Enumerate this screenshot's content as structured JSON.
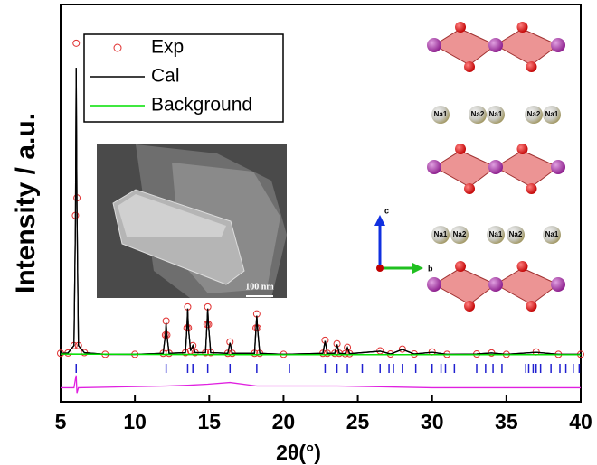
{
  "chart_data": {
    "type": "rietveld",
    "xlabel": "2θ(°)",
    "ylabel": "Intensity / a.u.",
    "xlim": [
      5,
      40
    ],
    "xticks": [
      5,
      10,
      15,
      20,
      25,
      30,
      35,
      40
    ],
    "ylim": [
      -13,
      100
    ],
    "legend": "upper left",
    "series": [
      {
        "name": "Exp",
        "style": "circles",
        "color": "#e03030",
        "x": [
          5,
          5.5,
          5.9,
          6.0,
          6.05,
          6.1,
          6.2,
          6.6,
          8,
          10,
          11.9,
          12.05,
          12.1,
          12.15,
          12.3,
          13.4,
          13.5,
          13.55,
          13.6,
          13.75,
          13.9,
          14.05,
          14.75,
          14.85,
          14.9,
          14.95,
          15.1,
          16.25,
          16.4,
          16.55,
          18.05,
          18.15,
          18.2,
          18.25,
          18.4,
          20,
          22.65,
          22.8,
          22.95,
          23.45,
          23.6,
          23.75,
          24.15,
          24.3,
          24.45,
          26.5,
          27.2,
          28,
          28.8,
          30,
          31,
          33,
          34,
          35,
          37,
          38.5,
          40
        ],
        "values": [
          0.8,
          0.9,
          3,
          40,
          89,
          45,
          3,
          1,
          0.5,
          0.5,
          0.8,
          6,
          10,
          6,
          0.8,
          1,
          8,
          14,
          8,
          1.5,
          3,
          1,
          1,
          9,
          14,
          9,
          1,
          0.8,
          4,
          0.8,
          0.8,
          8,
          12,
          8,
          0.8,
          0.5,
          0.8,
          4.5,
          0.8,
          0.8,
          3.5,
          0.8,
          0.7,
          2.5,
          0.7,
          1.5,
          0.6,
          2,
          0.6,
          1.2,
          0.5,
          0.6,
          0.9,
          0.5,
          1.2,
          0.5,
          0.5
        ]
      },
      {
        "name": "Cal",
        "style": "line",
        "color": "#000000",
        "x": [
          5,
          5.5,
          5.9,
          6.0,
          6.05,
          6.1,
          6.2,
          6.6,
          8,
          10,
          11.9,
          12.05,
          12.1,
          12.15,
          12.3,
          13.4,
          13.5,
          13.55,
          13.6,
          13.75,
          13.9,
          14.05,
          14.75,
          14.85,
          14.9,
          14.95,
          15.1,
          16.25,
          16.4,
          16.55,
          18.05,
          18.15,
          18.2,
          18.25,
          18.4,
          20,
          22.65,
          22.8,
          22.95,
          23.45,
          23.6,
          23.75,
          24.15,
          24.3,
          24.45,
          26.5,
          27.2,
          28,
          28.8,
          30,
          31,
          33,
          34,
          35,
          37,
          38.5,
          40
        ],
        "values": [
          0.8,
          0.9,
          3,
          38,
          82,
          43,
          3,
          1,
          0.5,
          0.5,
          0.8,
          6,
          9.5,
          6,
          0.8,
          1,
          8,
          13.5,
          8,
          1.5,
          3,
          1,
          1,
          9,
          13.5,
          9,
          1,
          0.8,
          3.8,
          0.8,
          0.8,
          8,
          11.5,
          8,
          0.8,
          0.5,
          0.8,
          4.3,
          0.8,
          0.8,
          3.3,
          0.8,
          0.7,
          2.4,
          0.7,
          1.4,
          0.6,
          1.9,
          0.6,
          1.1,
          0.5,
          0.6,
          0.9,
          0.5,
          1.1,
          0.5,
          0.5
        ]
      },
      {
        "name": "Background",
        "style": "line",
        "color": "#00e000",
        "x": [
          5,
          10,
          20,
          30,
          40
        ],
        "values": [
          0.6,
          0.5,
          0.4,
          0.4,
          0.4
        ]
      },
      {
        "style": "line",
        "color": "#e020e0",
        "x": [
          5,
          5.9,
          6.0,
          6.05,
          6.1,
          6.2,
          12.1,
          13.55,
          14.9,
          16.4,
          18.2,
          23.6,
          30,
          40
        ],
        "values": [
          -9,
          -9,
          -6.5,
          -5.5,
          -10.5,
          -9,
          -8.5,
          -8.3,
          -8,
          -7.5,
          -8.5,
          -8.5,
          -9,
          -9
        ]
      },
      {
        "style": "bragg",
        "color": "#2020d0",
        "level": -3.5,
        "x": [
          6.05,
          12.1,
          13.55,
          13.9,
          14.9,
          16.4,
          18.2,
          20.4,
          22.8,
          23.6,
          24.3,
          25.3,
          26.5,
          27.1,
          27.4,
          28.0,
          28.9,
          30.0,
          30.6,
          30.9,
          31.5,
          33.0,
          33.6,
          34.1,
          34.7,
          36.3,
          36.5,
          36.8,
          37.0,
          37.3,
          38.0,
          38.6,
          39.0,
          39.5,
          39.9
        ]
      }
    ],
    "annotations": {
      "scale_bar": "100 nm",
      "axis_c": "c",
      "axis_b": "b",
      "atoms_row1": [
        "Na1",
        "Na2",
        "Na1",
        "Na2",
        "Na1"
      ],
      "atoms_row2": [
        "Na1",
        "Na2",
        "Na1",
        "Na2",
        "Na1"
      ]
    }
  }
}
